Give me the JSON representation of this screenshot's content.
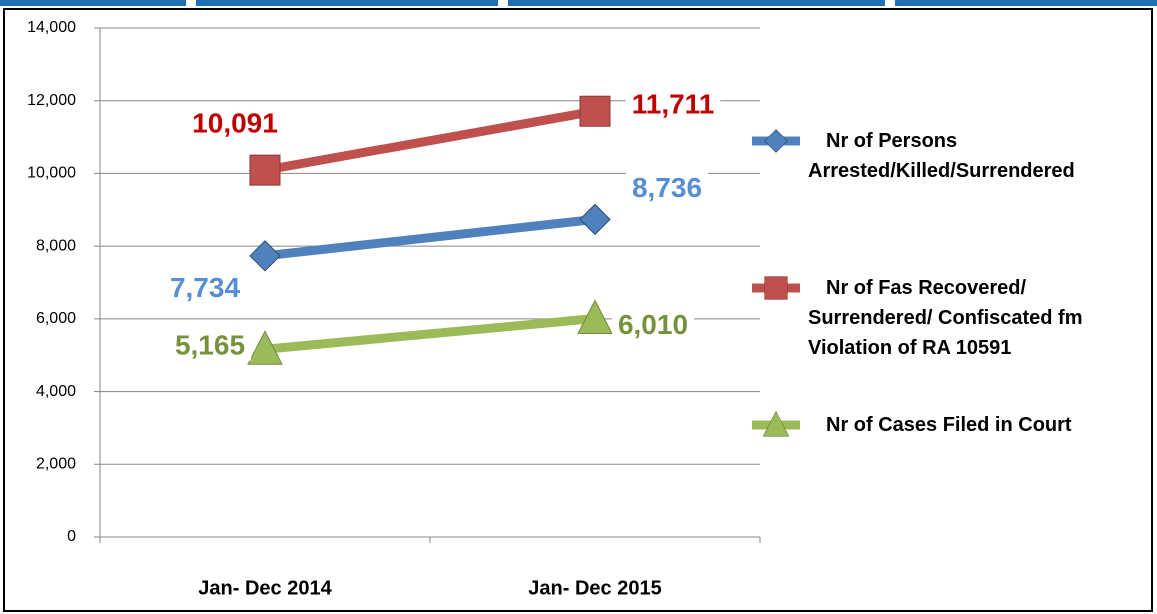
{
  "chart_data": {
    "type": "line",
    "categories": [
      "Jan- Dec 2014",
      "Jan- Dec 2015"
    ],
    "series": [
      {
        "name": "Nr of  Persons Arrested/Killed/Surrendered",
        "color": "#4f81bd",
        "label_color": "#558ed5",
        "marker": "diamond",
        "values": [
          7734,
          8736
        ],
        "value_labels": [
          "7,734",
          "8,736"
        ]
      },
      {
        "name": "Nr of Fas Recovered/ Surrendered/ Confiscated fm Violation of RA 10591",
        "color": "#c0504d",
        "label_color": "#c00000",
        "marker": "square",
        "values": [
          10091,
          11711
        ],
        "value_labels": [
          "10,091",
          "11,711"
        ]
      },
      {
        "name": "Nr of Cases Filed in Court",
        "color": "#9bbb59",
        "label_color": "#76923c",
        "marker": "triangle",
        "values": [
          5165,
          6010
        ],
        "value_labels": [
          "5,165",
          "6,010"
        ]
      }
    ],
    "ylim": [
      0,
      14000
    ],
    "yticks": [
      0,
      {
        "value": 2000,
        "label": "2,000"
      },
      {
        "value": 4000,
        "label": "4,000"
      },
      {
        "value": 6000,
        "label": "6,000"
      },
      {
        "value": 8000,
        "label": "8,000"
      },
      {
        "value": 10000,
        "label": "10,000"
      },
      {
        "value": 12000,
        "label": "12,000"
      },
      {
        "value": 14000,
        "label": "14,000"
      }
    ],
    "grid": true,
    "legend": "right"
  }
}
